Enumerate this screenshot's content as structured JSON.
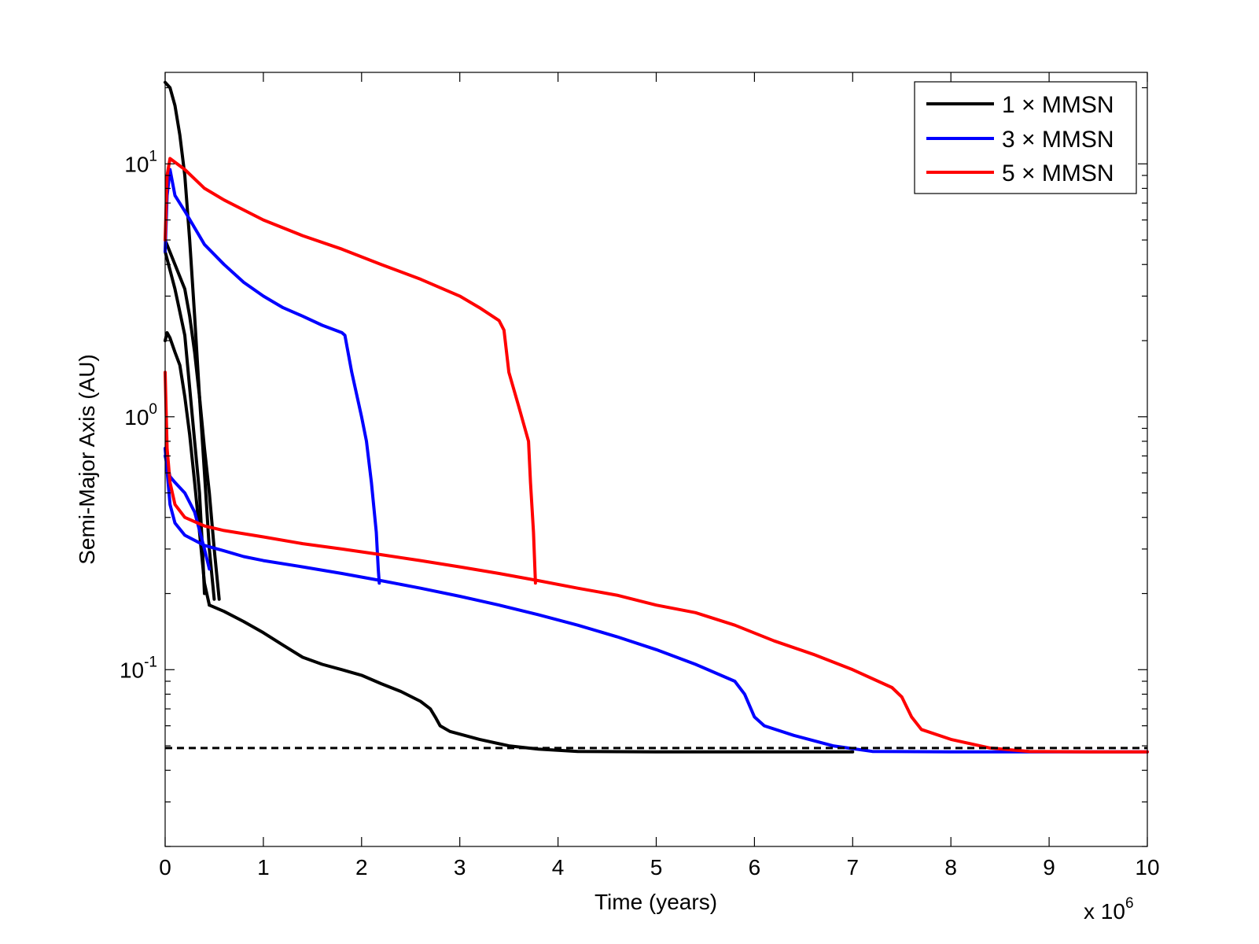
{
  "chart_data": {
    "type": "line",
    "title": "",
    "xlabel": "Time (years)",
    "ylabel": "Semi-Major Axis (AU)",
    "x_multiplier_label": "x 10",
    "x_multiplier_exp": "6",
    "xlim": [
      0,
      10
    ],
    "ylim": [
      0.02,
      23
    ],
    "yscale": "log",
    "x_ticks": [
      0,
      1,
      2,
      3,
      4,
      5,
      6,
      7,
      8,
      9,
      10
    ],
    "x_tick_labels": [
      "0",
      "1",
      "2",
      "3",
      "4",
      "5",
      "6",
      "7",
      "8",
      "9",
      "10"
    ],
    "y_ticks": [
      {
        "value": 0.1,
        "base": "10",
        "exp": "-1"
      },
      {
        "value": 1,
        "base": "10",
        "exp": "0"
      },
      {
        "value": 10,
        "base": "10",
        "exp": "1"
      }
    ],
    "grid": false,
    "legend_position": "top-right",
    "reference_line": {
      "y": 0.049,
      "style": "dashed",
      "color": "#000000"
    },
    "series": [
      {
        "name": "1 × MMSN",
        "color": "#000000",
        "curves": [
          [
            [
              0,
              21
            ],
            [
              0.05,
              20
            ],
            [
              0.1,
              17
            ],
            [
              0.15,
              13
            ],
            [
              0.2,
              9
            ],
            [
              0.25,
              5
            ],
            [
              0.3,
              2.5
            ],
            [
              0.35,
              1.2
            ],
            [
              0.4,
              0.6
            ],
            [
              0.45,
              0.3
            ],
            [
              0.5,
              0.19
            ]
          ],
          [
            [
              0,
              4.5
            ],
            [
              0.05,
              3.8
            ],
            [
              0.1,
              3.2
            ],
            [
              0.15,
              2.6
            ],
            [
              0.2,
              2.1
            ],
            [
              0.25,
              1.3
            ],
            [
              0.3,
              0.8
            ],
            [
              0.35,
              0.5
            ],
            [
              0.38,
              0.3
            ],
            [
              0.4,
              0.2
            ]
          ],
          [
            [
              0,
              5
            ],
            [
              0.1,
              4
            ],
            [
              0.2,
              3.2
            ],
            [
              0.25,
              2.5
            ],
            [
              0.3,
              1.8
            ],
            [
              0.35,
              1.2
            ],
            [
              0.4,
              0.75
            ],
            [
              0.45,
              0.5
            ],
            [
              0.5,
              0.3
            ],
            [
              0.55,
              0.19
            ]
          ],
          [
            [
              0,
              2
            ],
            [
              0.02,
              2.15
            ],
            [
              0.05,
              2.05
            ],
            [
              0.1,
              1.8
            ],
            [
              0.15,
              1.6
            ],
            [
              0.2,
              1.2
            ],
            [
              0.25,
              0.85
            ],
            [
              0.3,
              0.55
            ],
            [
              0.35,
              0.35
            ],
            [
              0.4,
              0.22
            ],
            [
              0.45,
              0.18
            ]
          ],
          [
            [
              0.45,
              0.18
            ],
            [
              0.6,
              0.17
            ],
            [
              0.8,
              0.155
            ],
            [
              1,
              0.14
            ],
            [
              1.2,
              0.125
            ],
            [
              1.4,
              0.112
            ],
            [
              1.6,
              0.105
            ],
            [
              1.8,
              0.1
            ],
            [
              2,
              0.095
            ],
            [
              2.2,
              0.088
            ],
            [
              2.4,
              0.082
            ],
            [
              2.6,
              0.075
            ],
            [
              2.7,
              0.07
            ],
            [
              2.75,
              0.065
            ],
            [
              2.8,
              0.06
            ],
            [
              2.9,
              0.057
            ],
            [
              3.2,
              0.053
            ],
            [
              3.5,
              0.05
            ],
            [
              3.8,
              0.0485
            ],
            [
              4.2,
              0.0475
            ],
            [
              5,
              0.0473
            ],
            [
              7,
              0.0473
            ]
          ]
        ]
      },
      {
        "name": "3 × MMSN",
        "color": "#0000ff",
        "curves": [
          [
            [
              0,
              4.5
            ],
            [
              0.02,
              7.5
            ],
            [
              0.05,
              9.5
            ],
            [
              0.1,
              7.5
            ],
            [
              0.2,
              6.5
            ],
            [
              0.4,
              4.8
            ],
            [
              0.6,
              4
            ],
            [
              0.8,
              3.4
            ],
            [
              1,
              3
            ],
            [
              1.2,
              2.7
            ],
            [
              1.4,
              2.5
            ],
            [
              1.6,
              2.3
            ],
            [
              1.8,
              2.15
            ],
            [
              1.83,
              2.1
            ],
            [
              1.9,
              1.5
            ],
            [
              2,
              1
            ],
            [
              2.05,
              0.8
            ],
            [
              2.1,
              0.55
            ],
            [
              2.15,
              0.35
            ],
            [
              2.17,
              0.25
            ],
            [
              2.18,
              0.22
            ]
          ],
          [
            [
              0,
              0.7
            ],
            [
              0.05,
              0.58
            ],
            [
              0.1,
              0.55
            ],
            [
              0.2,
              0.5
            ],
            [
              0.3,
              0.42
            ],
            [
              0.4,
              0.3
            ],
            [
              0.45,
              0.25
            ]
          ],
          [
            [
              0,
              0.75
            ],
            [
              0.05,
              0.45
            ],
            [
              0.1,
              0.38
            ],
            [
              0.2,
              0.34
            ],
            [
              0.4,
              0.31
            ],
            [
              0.6,
              0.295
            ],
            [
              0.8,
              0.28
            ],
            [
              1,
              0.27
            ],
            [
              1.4,
              0.255
            ],
            [
              1.8,
              0.24
            ],
            [
              2.2,
              0.225
            ],
            [
              2.6,
              0.21
            ],
            [
              3,
              0.195
            ],
            [
              3.4,
              0.18
            ],
            [
              3.8,
              0.165
            ],
            [
              4.2,
              0.15
            ],
            [
              4.6,
              0.135
            ],
            [
              5,
              0.12
            ],
            [
              5.4,
              0.105
            ],
            [
              5.8,
              0.09
            ],
            [
              5.9,
              0.08
            ],
            [
              6.0,
              0.065
            ],
            [
              6.1,
              0.06
            ],
            [
              6.4,
              0.055
            ],
            [
              6.8,
              0.05
            ],
            [
              7.2,
              0.0475
            ],
            [
              8,
              0.0473
            ],
            [
              10,
              0.0473
            ]
          ]
        ]
      },
      {
        "name": "5 × MMSN",
        "color": "#ff0000",
        "curves": [
          [
            [
              0,
              5
            ],
            [
              0.02,
              9
            ],
            [
              0.05,
              10.5
            ],
            [
              0.2,
              9.5
            ],
            [
              0.4,
              8
            ],
            [
              0.6,
              7.2
            ],
            [
              1,
              6
            ],
            [
              1.4,
              5.2
            ],
            [
              1.8,
              4.6
            ],
            [
              2.2,
              4
            ],
            [
              2.6,
              3.5
            ],
            [
              3,
              3
            ],
            [
              3.2,
              2.7
            ],
            [
              3.4,
              2.4
            ],
            [
              3.45,
              2.2
            ],
            [
              3.5,
              1.5
            ],
            [
              3.6,
              1.1
            ],
            [
              3.7,
              0.8
            ],
            [
              3.72,
              0.55
            ],
            [
              3.75,
              0.35
            ],
            [
              3.77,
              0.22
            ]
          ],
          [
            [
              0,
              1.5
            ],
            [
              0.02,
              0.75
            ],
            [
              0.05,
              0.55
            ],
            [
              0.1,
              0.45
            ],
            [
              0.2,
              0.4
            ],
            [
              0.4,
              0.37
            ],
            [
              0.6,
              0.355
            ],
            [
              1,
              0.335
            ],
            [
              1.4,
              0.315
            ],
            [
              1.8,
              0.3
            ],
            [
              2.2,
              0.285
            ],
            [
              2.6,
              0.27
            ],
            [
              3,
              0.255
            ],
            [
              3.4,
              0.24
            ],
            [
              3.8,
              0.225
            ],
            [
              4.2,
              0.21
            ],
            [
              4.6,
              0.197
            ],
            [
              5,
              0.18
            ],
            [
              5.4,
              0.168
            ],
            [
              5.8,
              0.15
            ],
            [
              6.2,
              0.13
            ],
            [
              6.6,
              0.115
            ],
            [
              7,
              0.1
            ],
            [
              7.4,
              0.085
            ],
            [
              7.5,
              0.078
            ],
            [
              7.6,
              0.065
            ],
            [
              7.7,
              0.058
            ],
            [
              8,
              0.053
            ],
            [
              8.4,
              0.049
            ],
            [
              8.8,
              0.0475
            ],
            [
              9.4,
              0.0473
            ],
            [
              10,
              0.0473
            ]
          ]
        ]
      }
    ]
  }
}
